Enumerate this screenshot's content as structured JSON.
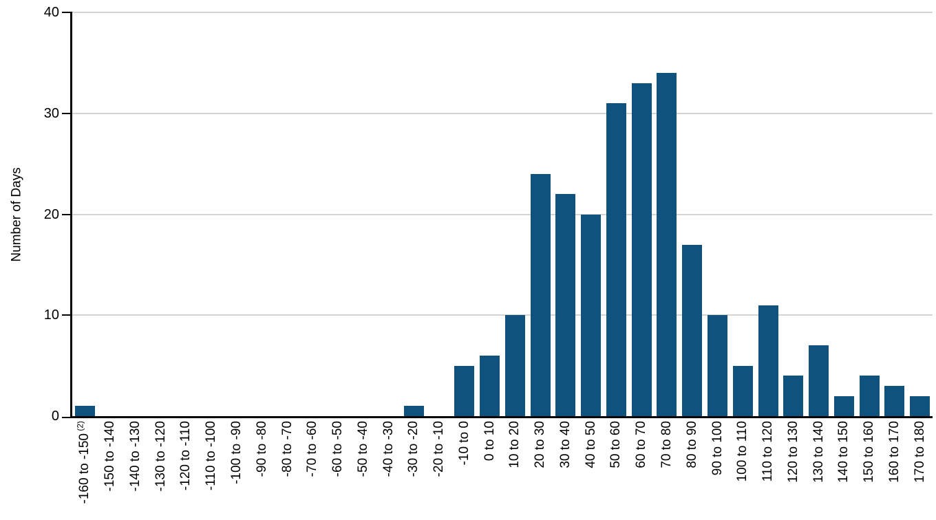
{
  "chart_data": {
    "type": "bar",
    "title": "",
    "xlabel": "",
    "ylabel": "Number of Days",
    "ylim": [
      0,
      40
    ],
    "yticks": [
      0,
      10,
      20,
      30,
      40
    ],
    "grid": true,
    "legend_position": "none",
    "bar_color": "#10527E",
    "axis_color": "#000000",
    "gridline_color": "#d4d4d4",
    "categories": [
      "-160 to -150",
      "-150 to -140",
      "-140 to -130",
      "-130 to -120",
      "-120 to -110",
      "-110 to -100",
      "-100 to -90",
      "-90 to -80",
      "-80 to -70",
      "-70 to -60",
      "-60 to -50",
      "-50 to -40",
      "-40 to -30",
      "-30 to -20",
      "-20 to -10",
      "-10 to 0",
      "0 to 10",
      "10 to 20",
      "20 to 30",
      "30 to 40",
      "40 to 50",
      "50 to 60",
      "60 to 70",
      "70 to 80",
      "80 to 90",
      "90 to 100",
      "100 to 110",
      "110 to 120",
      "120 to 130",
      "130 to 140",
      "140 to 150",
      "150 to 160",
      "160 to 170",
      "170 to 180"
    ],
    "category_footnotes": {
      "0": "(2)"
    },
    "values": [
      1,
      0,
      0,
      0,
      0,
      0,
      0,
      0,
      0,
      0,
      0,
      0,
      0,
      1,
      0,
      5,
      6,
      10,
      24,
      22,
      20,
      31,
      33,
      34,
      17,
      10,
      5,
      11,
      4,
      7,
      2,
      4,
      3,
      2
    ]
  }
}
